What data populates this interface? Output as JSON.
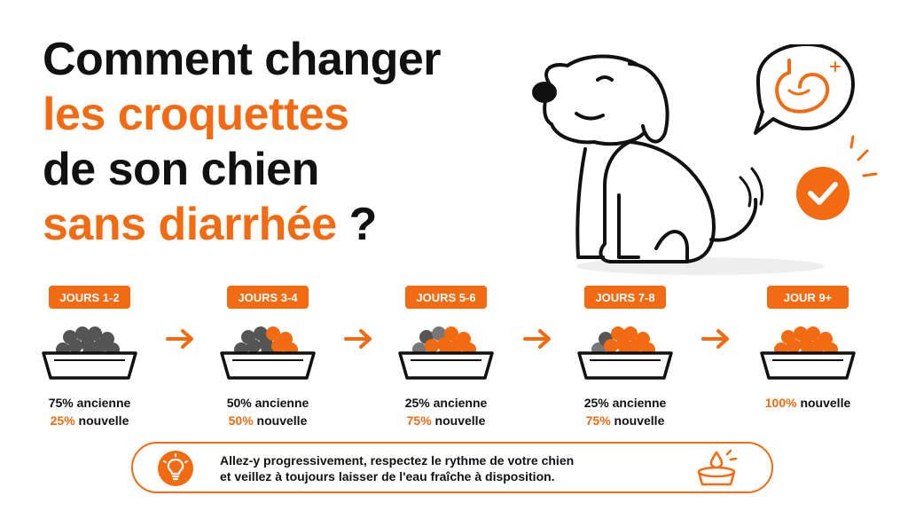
{
  "title": {
    "line1": "Comment changer",
    "line2": "les croquettes",
    "line3": "de son chien",
    "line4_orange": "sans diarrhée",
    "line4_suffix": " ?"
  },
  "steps": [
    {
      "badge": "JOURS 1-2",
      "line1_pct": "75%",
      "line1_text": " ancienne",
      "line2_pct": "25%",
      "line2_text": " nouvelle"
    },
    {
      "badge": "JOURS 3-4",
      "line1_pct": "50%",
      "line1_text": " ancienne",
      "line2_pct": "50%",
      "line2_text": " nouvelle"
    },
    {
      "badge": "JOURS 5-6",
      "line1_pct": "25%",
      "line1_text": " ancienne",
      "line2_pct": "75%",
      "line2_text": " nouvelle"
    },
    {
      "badge": "JOURS 7-8",
      "line1_pct": "25%",
      "line1_text": " ancienne",
      "line2_pct": "75%",
      "line2_text": " nouvelle"
    },
    {
      "badge": "JOUR 9+",
      "line2_pct": "100%",
      "line2_text": " nouvelle"
    }
  ],
  "tip": {
    "line1": "Allez-y progressivement, respectez le rythme de votre chien",
    "line2": "et veillez à toujours laisser de l'eau fraîche à disposition."
  },
  "colors": {
    "accent": "#f26a12",
    "old_kibble": "#555555",
    "new_kibble": "#f26a12"
  },
  "icons": [
    "dog-illustration",
    "happy-stomach-icon",
    "check-circle-icon",
    "arrow-right-icon",
    "lightbulb-icon",
    "water-bowl-icon"
  ]
}
